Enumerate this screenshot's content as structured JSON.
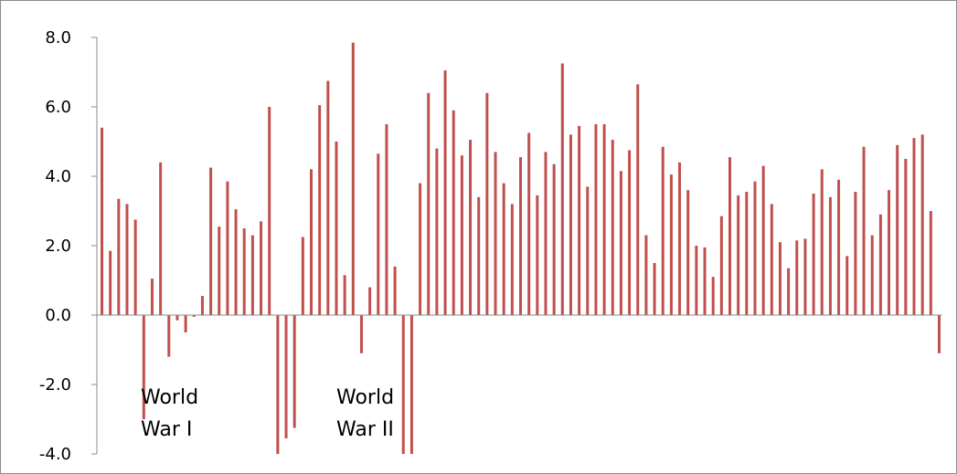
{
  "chart_data": {
    "type": "bar",
    "title": "",
    "xlabel": "",
    "ylabel": "",
    "ylim": [
      -4.0,
      8.0
    ],
    "yticks": [
      -4.0,
      -2.0,
      0.0,
      2.0,
      4.0,
      6.0,
      8.0
    ],
    "ytick_labels": [
      "-4.0",
      "-2.0",
      "0.0",
      "2.0",
      "4.0",
      "6.0",
      "8.0"
    ],
    "grid": false,
    "bar_color": "#c0504d",
    "values": [
      5.4,
      1.85,
      3.35,
      3.2,
      2.75,
      -3.0,
      1.05,
      4.4,
      -1.2,
      -0.15,
      -0.5,
      -0.05,
      0.55,
      4.25,
      2.55,
      3.85,
      3.05,
      2.5,
      2.3,
      2.7,
      6.0,
      -4.0,
      -3.55,
      -3.25,
      2.25,
      4.2,
      6.05,
      6.75,
      5.0,
      1.15,
      7.85,
      -1.1,
      0.8,
      4.65,
      5.5,
      1.4,
      -4.0,
      -4.0,
      3.8,
      6.4,
      4.8,
      7.05,
      5.9,
      4.6,
      5.05,
      3.4,
      6.4,
      4.7,
      3.8,
      3.2,
      4.55,
      5.25,
      3.45,
      4.7,
      4.35,
      7.25,
      5.2,
      5.45,
      3.7,
      5.5,
      5.5,
      5.05,
      4.15,
      4.75,
      6.65,
      2.3,
      1.5,
      4.85,
      4.05,
      4.4,
      3.6,
      2.0,
      1.95,
      1.1,
      2.85,
      4.55,
      3.45,
      3.55,
      3.85,
      4.3,
      3.2,
      2.1,
      1.35,
      2.15,
      2.2,
      3.5,
      4.2,
      3.4,
      3.9,
      1.7,
      3.55,
      4.85,
      2.3,
      2.9,
      3.6,
      4.9,
      4.5,
      5.1,
      5.2,
      3.0,
      -1.1
    ],
    "annotations": [
      {
        "lines": [
          "World",
          "War I"
        ]
      },
      {
        "lines": [
          "World",
          "War II"
        ]
      }
    ]
  }
}
